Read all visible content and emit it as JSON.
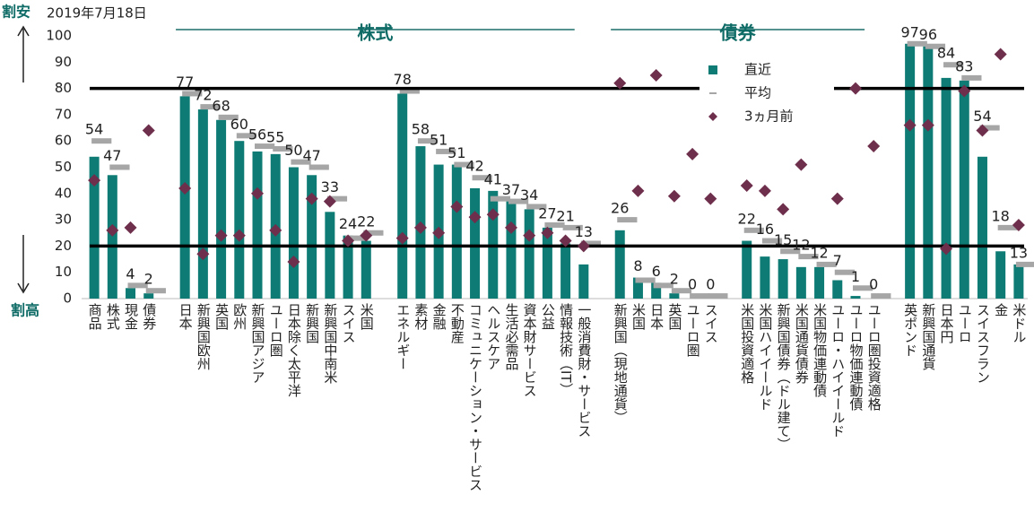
{
  "chart_data": {
    "type": "bar",
    "date": "2019年7月18日",
    "upper_label": "割安",
    "lower_label": "割高",
    "groups": [
      {
        "label": "株式"
      },
      {
        "label": "債券"
      }
    ],
    "categories": [
      "商品",
      "株式",
      "現金",
      "債券",
      null,
      "日本",
      "新興国欧州",
      "英国",
      "欧州",
      "新興国アジア",
      "ユーロ圏",
      "日本除く太平洋",
      "新興国",
      "新興国中南米",
      "スイス",
      "米国",
      null,
      "エネルギー",
      "素材",
      "金融",
      "不動産",
      "コミュニケーション・サービス",
      "ヘルスケア",
      "生活必需品",
      "資本財サービス",
      "公益",
      "情報技術（IT）",
      "一般消費財・サービス",
      null,
      "新興国（現地通貨）",
      "米国",
      "日本",
      "英国",
      "ユーロ圏",
      "スイス",
      null,
      "米国投資適格",
      "米国ハイイールド",
      "新興国債券（ドル建て）",
      "米国通貨債券",
      "米国物価連動債",
      "ユーロ・ハイイールド",
      "ユーロ物価連動債",
      "ユーロ圏投資適格",
      null,
      "英ポンド",
      "新興国通貨",
      "日本円",
      "ユーロ",
      "スイスフラン",
      "金",
      "米ドル"
    ],
    "series": [
      {
        "name": "直近",
        "color": "#0e7c74",
        "mark": "bar",
        "values": [
          54,
          47,
          4,
          2,
          null,
          77,
          72,
          68,
          60,
          56,
          55,
          50,
          47,
          33,
          24,
          22,
          null,
          78,
          58,
          51,
          51,
          42,
          41,
          37,
          34,
          27,
          21,
          13,
          null,
          26,
          8,
          6,
          2,
          0,
          0,
          null,
          22,
          16,
          15,
          12,
          12,
          7,
          1,
          0,
          null,
          97,
          96,
          84,
          83,
          54,
          18,
          13
        ]
      },
      {
        "name": "平均",
        "color": "#a6a6a6",
        "mark": "dash",
        "values": [
          60,
          50,
          5,
          3,
          null,
          78,
          73,
          69,
          62,
          58,
          57,
          52,
          50,
          38,
          23,
          25,
          null,
          79,
          60,
          56,
          51,
          46,
          38,
          37,
          35,
          28,
          27,
          21,
          null,
          30,
          7,
          5,
          3,
          1,
          1,
          null,
          26,
          22,
          18,
          16,
          13,
          10,
          4,
          1,
          null,
          97,
          96,
          89,
          84,
          65,
          27,
          13
        ]
      },
      {
        "name": "3ヵ月前",
        "color": "#6e2f4c",
        "mark": "diamond",
        "values": [
          45,
          26,
          27,
          64,
          null,
          42,
          17,
          24,
          24,
          40,
          26,
          14,
          38,
          37,
          22,
          24,
          null,
          23,
          27,
          25,
          35,
          31,
          32,
          27,
          24,
          25,
          22,
          20,
          null,
          82,
          41,
          85,
          39,
          55,
          38,
          null,
          43,
          41,
          34,
          51,
          null,
          38,
          80,
          58,
          null,
          66,
          66,
          19,
          79,
          64,
          93,
          28
        ]
      }
    ],
    "hlines": [
      80,
      20
    ],
    "ylim": [
      0,
      100
    ],
    "yticks": [
      0,
      10,
      20,
      30,
      40,
      50,
      60,
      70,
      80,
      90,
      100
    ],
    "grid": false
  }
}
